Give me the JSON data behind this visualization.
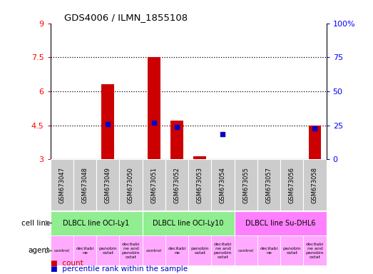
{
  "title": "GDS4006 / ILMN_1855108",
  "samples": [
    "GSM673047",
    "GSM673048",
    "GSM673049",
    "GSM673050",
    "GSM673051",
    "GSM673052",
    "GSM673053",
    "GSM673054",
    "GSM673055",
    "GSM673057",
    "GSM673056",
    "GSM673058"
  ],
  "count_values": [
    null,
    null,
    6.3,
    null,
    7.5,
    4.7,
    3.15,
    null,
    null,
    null,
    null,
    4.5
  ],
  "percentile_values": [
    null,
    null,
    4.55,
    null,
    4.6,
    4.44,
    null,
    4.1,
    null,
    null,
    null,
    4.35
  ],
  "ylim_left": [
    3,
    9
  ],
  "ylim_right": [
    0,
    100
  ],
  "yticks_left": [
    3,
    4.5,
    6,
    7.5,
    9
  ],
  "yticks_right": [
    0,
    25,
    50,
    75,
    100
  ],
  "ytick_labels_left": [
    "3",
    "4.5",
    "6",
    "7.5",
    "9"
  ],
  "ytick_labels_right": [
    "0",
    "25",
    "50",
    "75",
    "100%"
  ],
  "bar_color": "#cc0000",
  "dot_color": "#0000cc",
  "cell_lines": [
    {
      "label": "DLBCL line OCI-Ly1",
      "start": 0,
      "end": 3,
      "color": "#90ee90"
    },
    {
      "label": "DLBCL line OCI-Ly10",
      "start": 4,
      "end": 7,
      "color": "#90ee90"
    },
    {
      "label": "DLBCL line Su-DHL6",
      "start": 8,
      "end": 11,
      "color": "#ff80ff"
    }
  ],
  "agents": [
    "control",
    "decitabi\nne",
    "panobin\nostat",
    "decitabi\nne and\npanobin\nostat",
    "control",
    "decitabi\nne",
    "panobin\nostat",
    "decitabi\nne and\npanobin\nostat",
    "control",
    "decitabi\nne",
    "panobin\nostat",
    "decitabi\nne and\npanobin\nostat"
  ],
  "agent_color": "#ffaaff",
  "sample_bg_color": "#cccccc",
  "plot_bg_color": "#ffffff",
  "dotted_yticks": [
    4.5,
    6.0,
    7.5
  ],
  "bar_width": 0.55
}
